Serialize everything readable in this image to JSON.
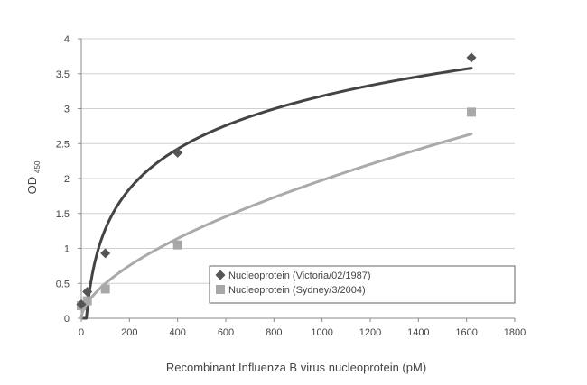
{
  "chart_data": {
    "type": "scatter",
    "title": "",
    "xlabel": "Recombinant Influenza B virus nucleoprotein (pM)",
    "ylabel_main": "OD",
    "ylabel_sub": "450",
    "xlim": [
      0,
      1800
    ],
    "ylim": [
      0,
      4
    ],
    "x_ticks": [
      0,
      200,
      400,
      600,
      800,
      1000,
      1200,
      1400,
      1600,
      1800
    ],
    "y_ticks": [
      0,
      0.5,
      1,
      1.5,
      2,
      2.5,
      3,
      3.5,
      4
    ],
    "y_tick_labels": [
      "0",
      "0.5",
      "1",
      "1.5",
      "2",
      "2.5",
      "3",
      "3.5",
      "4"
    ],
    "grid": "horizontal",
    "legend_position": "bottom-right",
    "series": [
      {
        "name": "Nucleoprotein (Victoria/02/1987)",
        "marker": "diamond",
        "color": "#555555",
        "line_color": "#444444",
        "x": [
          0,
          25,
          100,
          400,
          1620
        ],
        "y": [
          0.2,
          0.38,
          0.93,
          2.37,
          3.73
        ],
        "trend": "logarithmic",
        "trend_x_range": [
          3,
          1620
        ]
      },
      {
        "name": "Nucleoprotein (Sydney/3/2004)",
        "marker": "square",
        "color": "#a8a8a8",
        "line_color": "#aaaaaa",
        "x": [
          0,
          25,
          100,
          400,
          1620
        ],
        "y": [
          0.18,
          0.25,
          0.42,
          1.05,
          2.95
        ],
        "trend": "power",
        "trend_x_range": [
          0,
          1620
        ]
      }
    ]
  }
}
